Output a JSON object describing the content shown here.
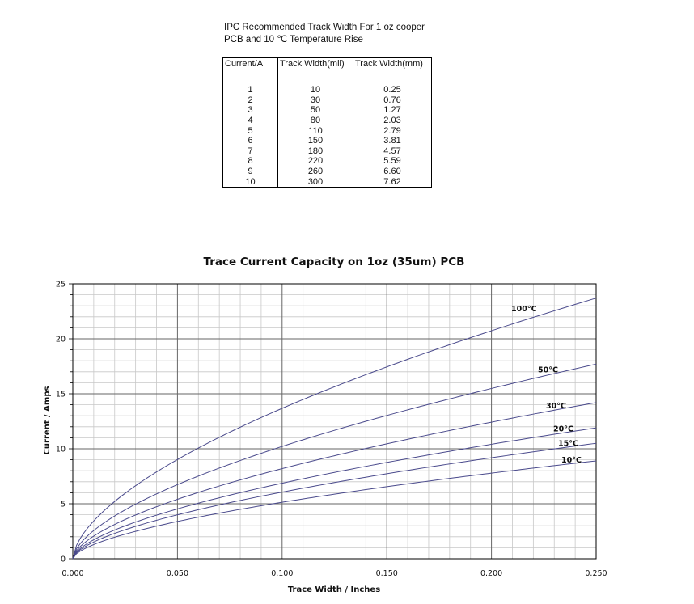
{
  "table": {
    "caption_line1": "IPC Recommended Track Width For 1 oz cooper",
    "caption_line2": "PCB and 10 ℃ Temperature Rise",
    "headers": [
      "Current/A",
      "Track Width(mil)",
      "Track Width(mm)"
    ],
    "rows": [
      [
        "1",
        "10",
        "0.25"
      ],
      [
        "2",
        "30",
        "0.76"
      ],
      [
        "3",
        "50",
        "1.27"
      ],
      [
        "4",
        "80",
        "2.03"
      ],
      [
        "5",
        "110",
        "2.79"
      ],
      [
        "6",
        "150",
        "3.81"
      ],
      [
        "7",
        "180",
        "4.57"
      ],
      [
        "8",
        "220",
        "5.59"
      ],
      [
        "9",
        "260",
        "6.60"
      ],
      [
        "10",
        "300",
        "7.62"
      ]
    ]
  },
  "chart_data": {
    "type": "line",
    "title": "Trace Current Capacity on 1oz (35um) PCB",
    "xlabel": "Trace Width / Inches",
    "ylabel": "Current  / Amps",
    "xlim": [
      0,
      0.25
    ],
    "ylim": [
      0,
      25
    ],
    "x_ticks": [
      "0.000",
      "0.050",
      "0.100",
      "0.150",
      "0.200",
      "0.250"
    ],
    "y_ticks": [
      "0",
      "5",
      "10",
      "15",
      "20",
      "25"
    ],
    "grid": true,
    "line_color": "#4a4a8c",
    "series": [
      {
        "name": "100°C",
        "x": [
          0,
          0.05,
          0.1,
          0.15,
          0.2,
          0.25
        ],
        "y": [
          0,
          8.1,
          12.8,
          16.8,
          20.4,
          23.7
        ]
      },
      {
        "name": "50°C",
        "x": [
          0,
          0.05,
          0.1,
          0.15,
          0.2,
          0.25
        ],
        "y": [
          0,
          6.0,
          9.5,
          12.5,
          15.2,
          17.7
        ]
      },
      {
        "name": "30°C",
        "x": [
          0,
          0.05,
          0.1,
          0.15,
          0.2,
          0.25
        ],
        "y": [
          0,
          4.8,
          7.6,
          10.0,
          12.2,
          14.2
        ]
      },
      {
        "name": "20°C",
        "x": [
          0,
          0.05,
          0.1,
          0.15,
          0.2,
          0.25
        ],
        "y": [
          0,
          4.0,
          6.4,
          8.4,
          10.2,
          11.9
        ]
      },
      {
        "name": "15°C",
        "x": [
          0,
          0.05,
          0.1,
          0.15,
          0.2,
          0.25
        ],
        "y": [
          0,
          3.6,
          5.7,
          7.5,
          9.1,
          10.5
        ]
      },
      {
        "name": "10°C",
        "x": [
          0,
          0.05,
          0.1,
          0.15,
          0.2,
          0.25
        ],
        "y": [
          0,
          3.0,
          4.8,
          6.3,
          7.7,
          8.9
        ]
      }
    ]
  }
}
